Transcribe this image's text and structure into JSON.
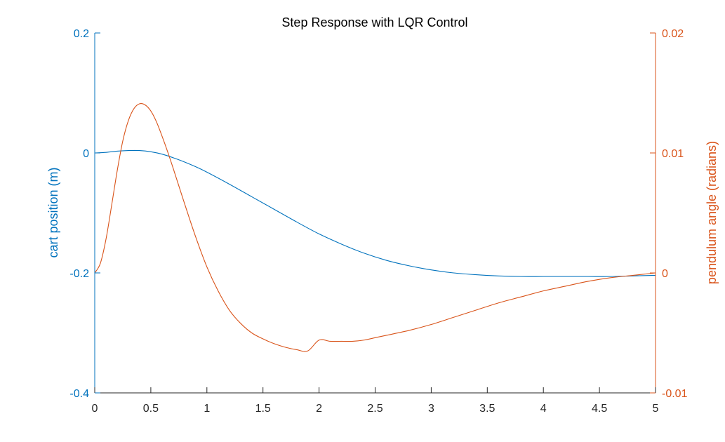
{
  "chart_data": {
    "type": "line",
    "title": "Step Response with LQR Control",
    "xlabel": "",
    "xlim": [
      0,
      5
    ],
    "x_ticks": [
      "0",
      "0.5",
      "1",
      "1.5",
      "2",
      "2.5",
      "3",
      "3.5",
      "4",
      "4.5",
      "5"
    ],
    "ylabel_left": "cart position (m)",
    "ylim_left": [
      -0.4,
      0.2
    ],
    "y_ticks_left": [
      "-0.4",
      "-0.2",
      "0",
      "0.2"
    ],
    "ylabel_right": "pendulum angle (radians)",
    "ylim_right": [
      -0.01,
      0.02
    ],
    "y_ticks_right": [
      "-0.01",
      "0",
      "0.01",
      "0.02"
    ],
    "grid": false,
    "colors": {
      "left": "#0072BD",
      "right": "#D95319",
      "axis": "#262626"
    },
    "series": [
      {
        "axis": "left",
        "x": [
          0,
          0.1,
          0.2,
          0.3,
          0.4,
          0.5,
          0.6,
          0.7,
          0.8,
          0.9,
          1.0,
          1.2,
          1.4,
          1.6,
          1.8,
          2.0,
          2.2,
          2.4,
          2.6,
          2.8,
          3.0,
          3.2,
          3.4,
          3.6,
          3.8,
          4.0,
          4.2,
          4.4,
          4.6,
          4.8,
          5.0
        ],
        "y": [
          0,
          0.001,
          0.003,
          0.004,
          0.004,
          0.002,
          -0.002,
          -0.008,
          -0.015,
          -0.023,
          -0.032,
          -0.052,
          -0.073,
          -0.094,
          -0.115,
          -0.135,
          -0.152,
          -0.167,
          -0.179,
          -0.188,
          -0.195,
          -0.2,
          -0.203,
          -0.205,
          -0.206,
          -0.206,
          -0.206,
          -0.206,
          -0.206,
          -0.205,
          -0.204
        ]
      },
      {
        "axis": "right",
        "x": [
          0,
          0.05,
          0.1,
          0.15,
          0.2,
          0.25,
          0.3,
          0.35,
          0.4,
          0.45,
          0.5,
          0.55,
          0.6,
          0.65,
          0.7,
          0.8,
          0.9,
          1.0,
          1.1,
          1.2,
          1.3,
          1.4,
          1.5,
          1.6,
          1.7,
          1.8,
          1.9,
          2.0,
          2.1,
          2.2,
          2.3,
          2.4,
          2.5,
          2.6,
          2.8,
          3.0,
          3.2,
          3.4,
          3.6,
          3.8,
          4.0,
          4.2,
          4.4,
          4.6,
          4.8,
          5.0
        ],
        "y": [
          0,
          0.0008,
          0.0028,
          0.0056,
          0.0085,
          0.011,
          0.0127,
          0.0137,
          0.0141,
          0.014,
          0.0135,
          0.0126,
          0.0114,
          0.0101,
          0.0087,
          0.0058,
          0.003,
          0.0005,
          -0.0015,
          -0.0031,
          -0.0042,
          -0.005,
          -0.0055,
          -0.0059,
          -0.0062,
          -0.0064,
          -0.0065,
          -0.0056,
          -0.0057,
          -0.0057,
          -0.0057,
          -0.0056,
          -0.0054,
          -0.0052,
          -0.0048,
          -0.0043,
          -0.0037,
          -0.0031,
          -0.0025,
          -0.002,
          -0.0015,
          -0.0011,
          -0.0007,
          -0.0004,
          -0.0002,
          0
        ]
      }
    ]
  }
}
